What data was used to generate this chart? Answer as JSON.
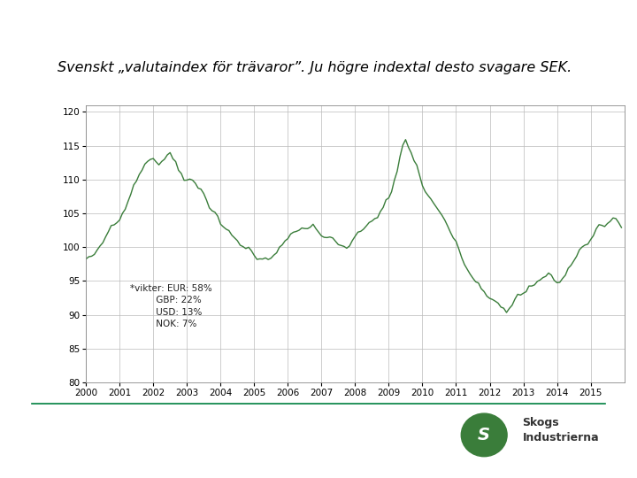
{
  "title": "Svenskt „valutaindex för trävaror”. Ju högre indextal desto svagare SEK.",
  "annotation_line1": "*vikter: EUR: 58%",
  "annotation_line2": "         GBP: 22%",
  "annotation_line3": "         USD: 13%",
  "annotation_line4": "         NOK: 7%",
  "ylim": [
    80,
    121
  ],
  "yticks": [
    80,
    85,
    90,
    95,
    100,
    105,
    110,
    115,
    120
  ],
  "xlim_start": 2000,
  "xlim_end": 2016,
  "xticks": [
    2000,
    2001,
    2002,
    2003,
    2004,
    2005,
    2006,
    2007,
    2008,
    2009,
    2010,
    2011,
    2012,
    2013,
    2014,
    2015
  ],
  "line_color": "#3a7d3a",
  "line_width": 1.0,
  "background_color": "#ffffff",
  "grid_color": "#bbbbbb",
  "title_fontsize": 11.5,
  "tick_fontsize": 7.5,
  "annotation_fontsize": 7.5,
  "control_points_x": [
    0,
    3,
    6,
    9,
    12,
    15,
    18,
    21,
    24,
    27,
    30,
    33,
    36,
    39,
    42,
    45,
    48,
    51,
    54,
    57,
    60,
    63,
    66,
    69,
    72,
    75,
    78,
    81,
    84,
    87,
    90,
    93,
    96,
    99,
    102,
    105,
    108,
    109,
    110,
    111,
    112,
    113,
    114,
    115,
    116,
    117,
    118,
    120,
    123,
    126,
    129,
    132,
    135,
    138,
    141,
    144,
    147,
    150,
    153,
    156,
    159,
    162,
    165,
    168,
    171,
    174,
    177,
    180,
    183,
    186,
    189,
    191
  ],
  "control_points_y": [
    98,
    99,
    101,
    103,
    104,
    107,
    110,
    112,
    113,
    113,
    114,
    112,
    110,
    109,
    108,
    106,
    103,
    102,
    101,
    100,
    99,
    98,
    99,
    100,
    101,
    102,
    103,
    103,
    102,
    101,
    100,
    100,
    101,
    103,
    104,
    105,
    107,
    108,
    110,
    111,
    113,
    115,
    116,
    115,
    114,
    113,
    112,
    109,
    107,
    105,
    103,
    101,
    98,
    96,
    94,
    93,
    92,
    91,
    92,
    93,
    94,
    95,
    96,
    95,
    96,
    98,
    100,
    101,
    103,
    104,
    104,
    103
  ]
}
